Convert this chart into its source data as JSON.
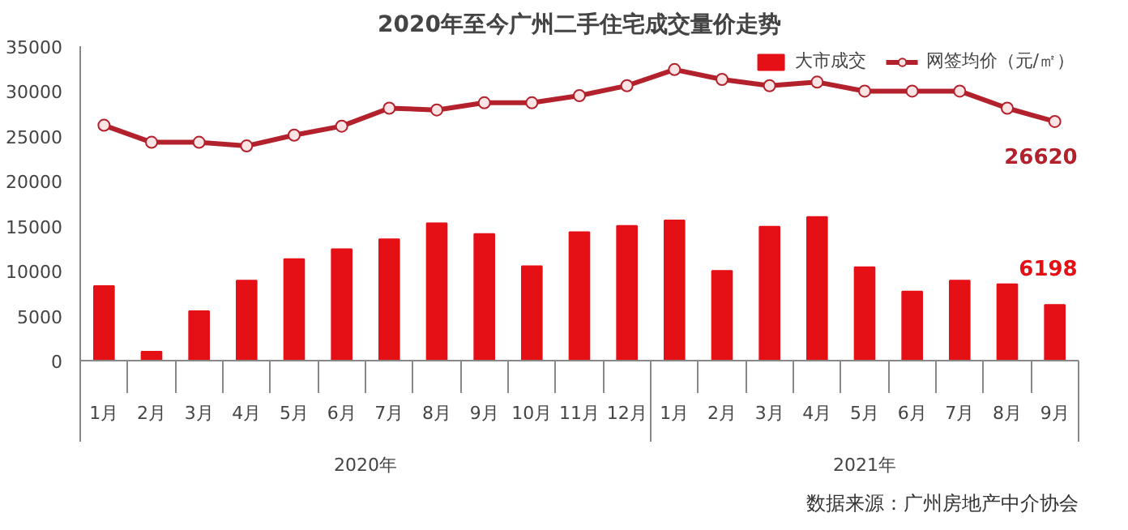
{
  "chart_data": {
    "type": "bar",
    "title": "2020年至今广州二手住宅成交量价走势",
    "x": [
      "2020-01",
      "2020-02",
      "2020-03",
      "2020-04",
      "2020-05",
      "2020-06",
      "2020-07",
      "2020-08",
      "2020-09",
      "2020-10",
      "2020-11",
      "2020-12",
      "2021-01",
      "2021-02",
      "2021-03",
      "2021-04",
      "2021-05",
      "2021-06",
      "2021-07",
      "2021-08",
      "2021-09"
    ],
    "xticks": [
      {
        "value": "2020-01",
        "label": "1月"
      },
      {
        "value": "2020-02",
        "label": "2月"
      },
      {
        "value": "2020-03",
        "label": "3月"
      },
      {
        "value": "2020-04",
        "label": "4月"
      },
      {
        "value": "2020-05",
        "label": "5月"
      },
      {
        "value": "2020-06",
        "label": "6月"
      },
      {
        "value": "2020-07",
        "label": "7月"
      },
      {
        "value": "2020-08",
        "label": "8月"
      },
      {
        "value": "2020-09",
        "label": "9月"
      },
      {
        "value": "2020-10",
        "label": "10月"
      },
      {
        "value": "2020-11",
        "label": "11月"
      },
      {
        "value": "2020-12",
        "label": "12月"
      },
      {
        "value": "2021-01",
        "label": "1月"
      },
      {
        "value": "2021-02",
        "label": "2月"
      },
      {
        "value": "2021-03",
        "label": "3月"
      },
      {
        "value": "2021-04",
        "label": "4月"
      },
      {
        "value": "2021-05",
        "label": "5月"
      },
      {
        "value": "2021-06",
        "label": "6月"
      },
      {
        "value": "2021-07",
        "label": "7月"
      },
      {
        "value": "2021-08",
        "label": "8月"
      },
      {
        "value": "2021-09",
        "label": "9月"
      }
    ],
    "series": [
      {
        "name": "大市成交",
        "color": "#e50f16",
        "values": [
          8300,
          1000,
          5500,
          8900,
          11300,
          12400,
          13500,
          15300,
          14100,
          10500,
          14300,
          15000,
          15600,
          10000,
          14900,
          16000,
          10400,
          7700,
          8900,
          8500,
          6198
        ],
        "value_labels": [
          null,
          null,
          null,
          null,
          null,
          null,
          null,
          null,
          null,
          null,
          null,
          null,
          null,
          null,
          null,
          null,
          null,
          null,
          null,
          null,
          "6198"
        ]
      },
      {
        "name": "网签均价（元/㎡）",
        "type": "line",
        "color": "#b3222c",
        "marker": "circle",
        "line_style": "solid",
        "values": [
          26200,
          24300,
          24300,
          23900,
          25100,
          26100,
          28100,
          27900,
          28700,
          28700,
          29500,
          30600,
          32400,
          31300,
          30600,
          31000,
          30000,
          30000,
          30000,
          28100,
          26620
        ],
        "value_labels": [
          null,
          null,
          null,
          null,
          null,
          null,
          null,
          null,
          null,
          null,
          null,
          null,
          null,
          null,
          null,
          null,
          null,
          null,
          null,
          null,
          "26620"
        ]
      }
    ],
    "xlim": [
      "2019-12-16",
      "2021-09-16"
    ],
    "ylim": [
      0,
      35000
    ],
    "yticks": [
      0,
      5000,
      10000,
      15000,
      20000,
      25000,
      30000,
      35000
    ],
    "grid": false,
    "legend": "top right",
    "annotations": [
      "2020年",
      "2021年",
      "数据来源：广州房地产中介协会"
    ]
  }
}
